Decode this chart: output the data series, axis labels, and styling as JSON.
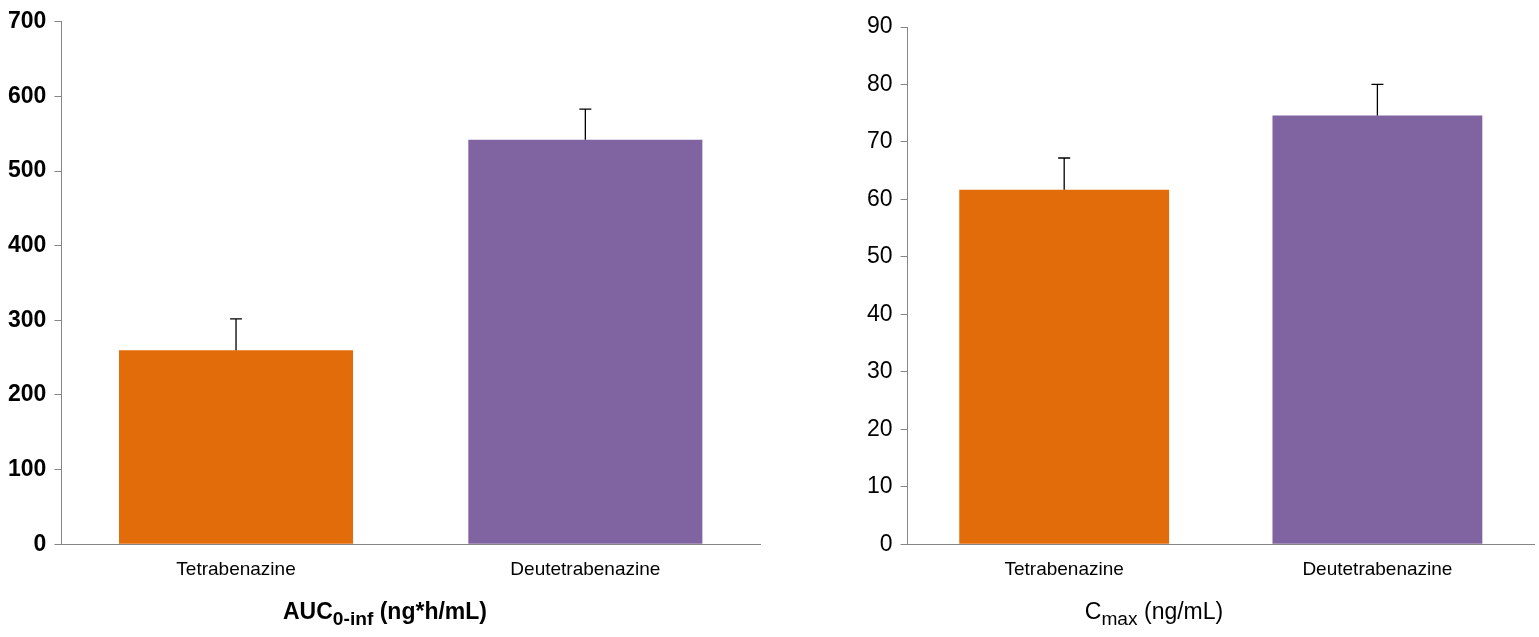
{
  "chart_data": [
    {
      "type": "bar",
      "xlabel": "AUC$_{0-inf}$ (ng*h/mL)",
      "categories": [
        "Tetrabenazine",
        "Deutetrabenazine"
      ],
      "values": [
        260,
        542
      ],
      "colors": [
        "#e36c0a",
        "#8064a2"
      ],
      "errors": [
        [
          260,
          302
        ],
        [
          542,
          583
        ]
      ],
      "ylim": [
        0,
        700
      ],
      "yticks": [
        0,
        100,
        200,
        300,
        400,
        500,
        600,
        700
      ],
      "grid": false,
      "legend": false
    },
    {
      "type": "bar",
      "xlabel": "C$_{max}$ (ng/mL)",
      "categories": [
        "Tetrabenazine",
        "Deutetrabenazine"
      ],
      "values": [
        61.7,
        74.6
      ],
      "colors": [
        "#e36c0a",
        "#8064a2"
      ],
      "errors": [
        [
          61.7,
          67.2
        ],
        [
          74.6,
          80
        ]
      ],
      "ylim": [
        0,
        90
      ],
      "yticks": [
        0,
        10,
        20,
        30,
        40,
        50,
        60,
        70,
        80,
        90
      ],
      "grid": false,
      "legend": false
    }
  ]
}
